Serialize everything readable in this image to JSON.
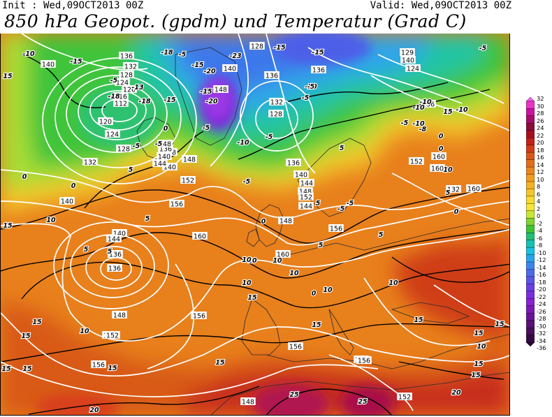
{
  "header": {
    "init_label": "Init : Wed,09OCT2013 00Z",
    "valid_label": "Valid: Wed,09OCT2013 00Z",
    "title": "850 hPa Geopot. (gpdm) und Temperatur (Grad C)"
  },
  "colors": {
    "background": "#ffffff",
    "frame": "#000000",
    "geopotential_contour": "#ffffff",
    "temperature_contour": "#000000"
  },
  "legend": {
    "labels": [
      "32",
      "30",
      "28",
      "26",
      "24",
      "22",
      "20",
      "18",
      "16",
      "14",
      "12",
      "10",
      "8",
      "6",
      "4",
      "2",
      "0",
      "-2",
      "-4",
      "-6",
      "-8",
      "-10",
      "-12",
      "-14",
      "-16",
      "-18",
      "-20",
      "-22",
      "-24",
      "-26",
      "-28",
      "-30",
      "-32",
      "-34",
      "-36"
    ],
    "colors": [
      "#ff5ff0",
      "#ee32c8",
      "#cf11a3",
      "#aa0a6e",
      "#8b0b3a",
      "#a80d1d",
      "#c41f1a",
      "#d33a16",
      "#dc5716",
      "#e46e18",
      "#ea861c",
      "#f09c20",
      "#f5b223",
      "#f8c628",
      "#fad92d",
      "#f7e733",
      "#c9e633",
      "#7fd332",
      "#3ec531",
      "#1fc173",
      "#14c3b2",
      "#19c0e0",
      "#27a6ec",
      "#3b86ee",
      "#4d6bea",
      "#5a55e8",
      "#6a3fe4",
      "#7a2ddf",
      "#8b20d6",
      "#7d17b6",
      "#6c1296",
      "#5a1078",
      "#490e5d",
      "#360a44",
      "#260730"
    ]
  },
  "map": {
    "geopotential_labels": [
      "140",
      "136",
      "132",
      "128",
      "124",
      "120",
      "116",
      "112",
      "120",
      "124",
      "128",
      "132",
      "140",
      "136",
      "140",
      "136",
      "148",
      "144",
      "140",
      "148",
      "152",
      "148",
      "156",
      "160",
      "144",
      "140",
      "136",
      "148",
      "152",
      "148",
      "160",
      "128",
      "136",
      "140",
      "132",
      "128",
      "124",
      "129",
      "140",
      "136",
      "136",
      "144",
      "148",
      "152",
      "160",
      "132",
      "136",
      "140",
      "144",
      "148",
      "152",
      "156",
      "160",
      "156",
      "156",
      "152",
      "156",
      "156",
      "152",
      "148",
      "160",
      "156",
      "160"
    ],
    "temperature_labels": [
      "-10",
      "-15",
      "-18",
      "-5",
      "-15",
      "-20",
      "-23",
      "-15",
      "-15",
      "-5",
      "-13",
      "-18",
      "-18",
      "-15",
      "-20",
      "-10",
      "-15",
      "-10",
      "-5",
      "-10",
      "-5",
      "-5",
      "0",
      "0",
      "-5",
      "5",
      "-5",
      "-10",
      "5",
      "0",
      "-5",
      "0",
      "-5",
      "5",
      "5",
      "5",
      "5",
      "10",
      "10",
      "10",
      "5",
      "10",
      "10",
      "5",
      "10",
      "10",
      "15",
      "15",
      "10",
      "15",
      "15",
      "15",
      "10",
      "15",
      "15",
      "15",
      "15",
      "15",
      "15",
      "15",
      "20",
      "25",
      "25",
      "20",
      "15",
      "0",
      "10",
      "15",
      "15",
      "15",
      "10",
      "5",
      "0",
      "-5",
      "-10",
      "-5",
      "0",
      "0",
      "-10",
      "-8",
      "-5",
      "-5"
    ]
  }
}
